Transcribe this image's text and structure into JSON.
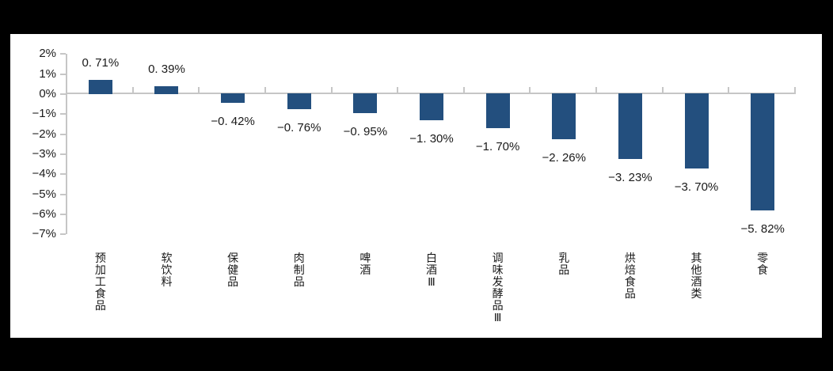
{
  "page": {
    "background_color": "#000000",
    "panel_background_color": "#ffffff"
  },
  "chart_data": {
    "type": "bar",
    "title": "",
    "xlabel": "",
    "ylabel": "",
    "categories": [
      "预加工食品",
      "软饮料",
      "保健品",
      "肉制品",
      "啤酒",
      "白酒Ⅲ",
      "调味发酵品Ⅲ",
      "乳品",
      "烘焙食品",
      "其他酒类",
      "零食"
    ],
    "values": [
      0.71,
      0.39,
      -0.42,
      -0.76,
      -0.95,
      -1.3,
      -1.7,
      -2.26,
      -3.23,
      -3.7,
      -5.82
    ],
    "value_labels": [
      "0. 71%",
      "0. 39%",
      "−0. 42%",
      "−0. 76%",
      "−0. 95%",
      "−1. 30%",
      "−1. 70%",
      "−2. 26%",
      "−3. 23%",
      "−3. 70%",
      "−5. 82%"
    ],
    "unit": "%",
    "ylim": [
      -7,
      2
    ],
    "y_ticks": [
      2,
      1,
      0,
      -1,
      -2,
      -3,
      -4,
      -5,
      -6,
      -7
    ],
    "y_tick_labels": [
      "2%",
      "1%",
      "0%",
      "−1%",
      "−2%",
      "−3%",
      "−4%",
      "−5%",
      "−6%",
      "−7%"
    ],
    "grid": false,
    "legend": false,
    "bar_color": "#234f7e",
    "axis_color": "#c6c6c6",
    "text_color": "#1a1a1a"
  }
}
